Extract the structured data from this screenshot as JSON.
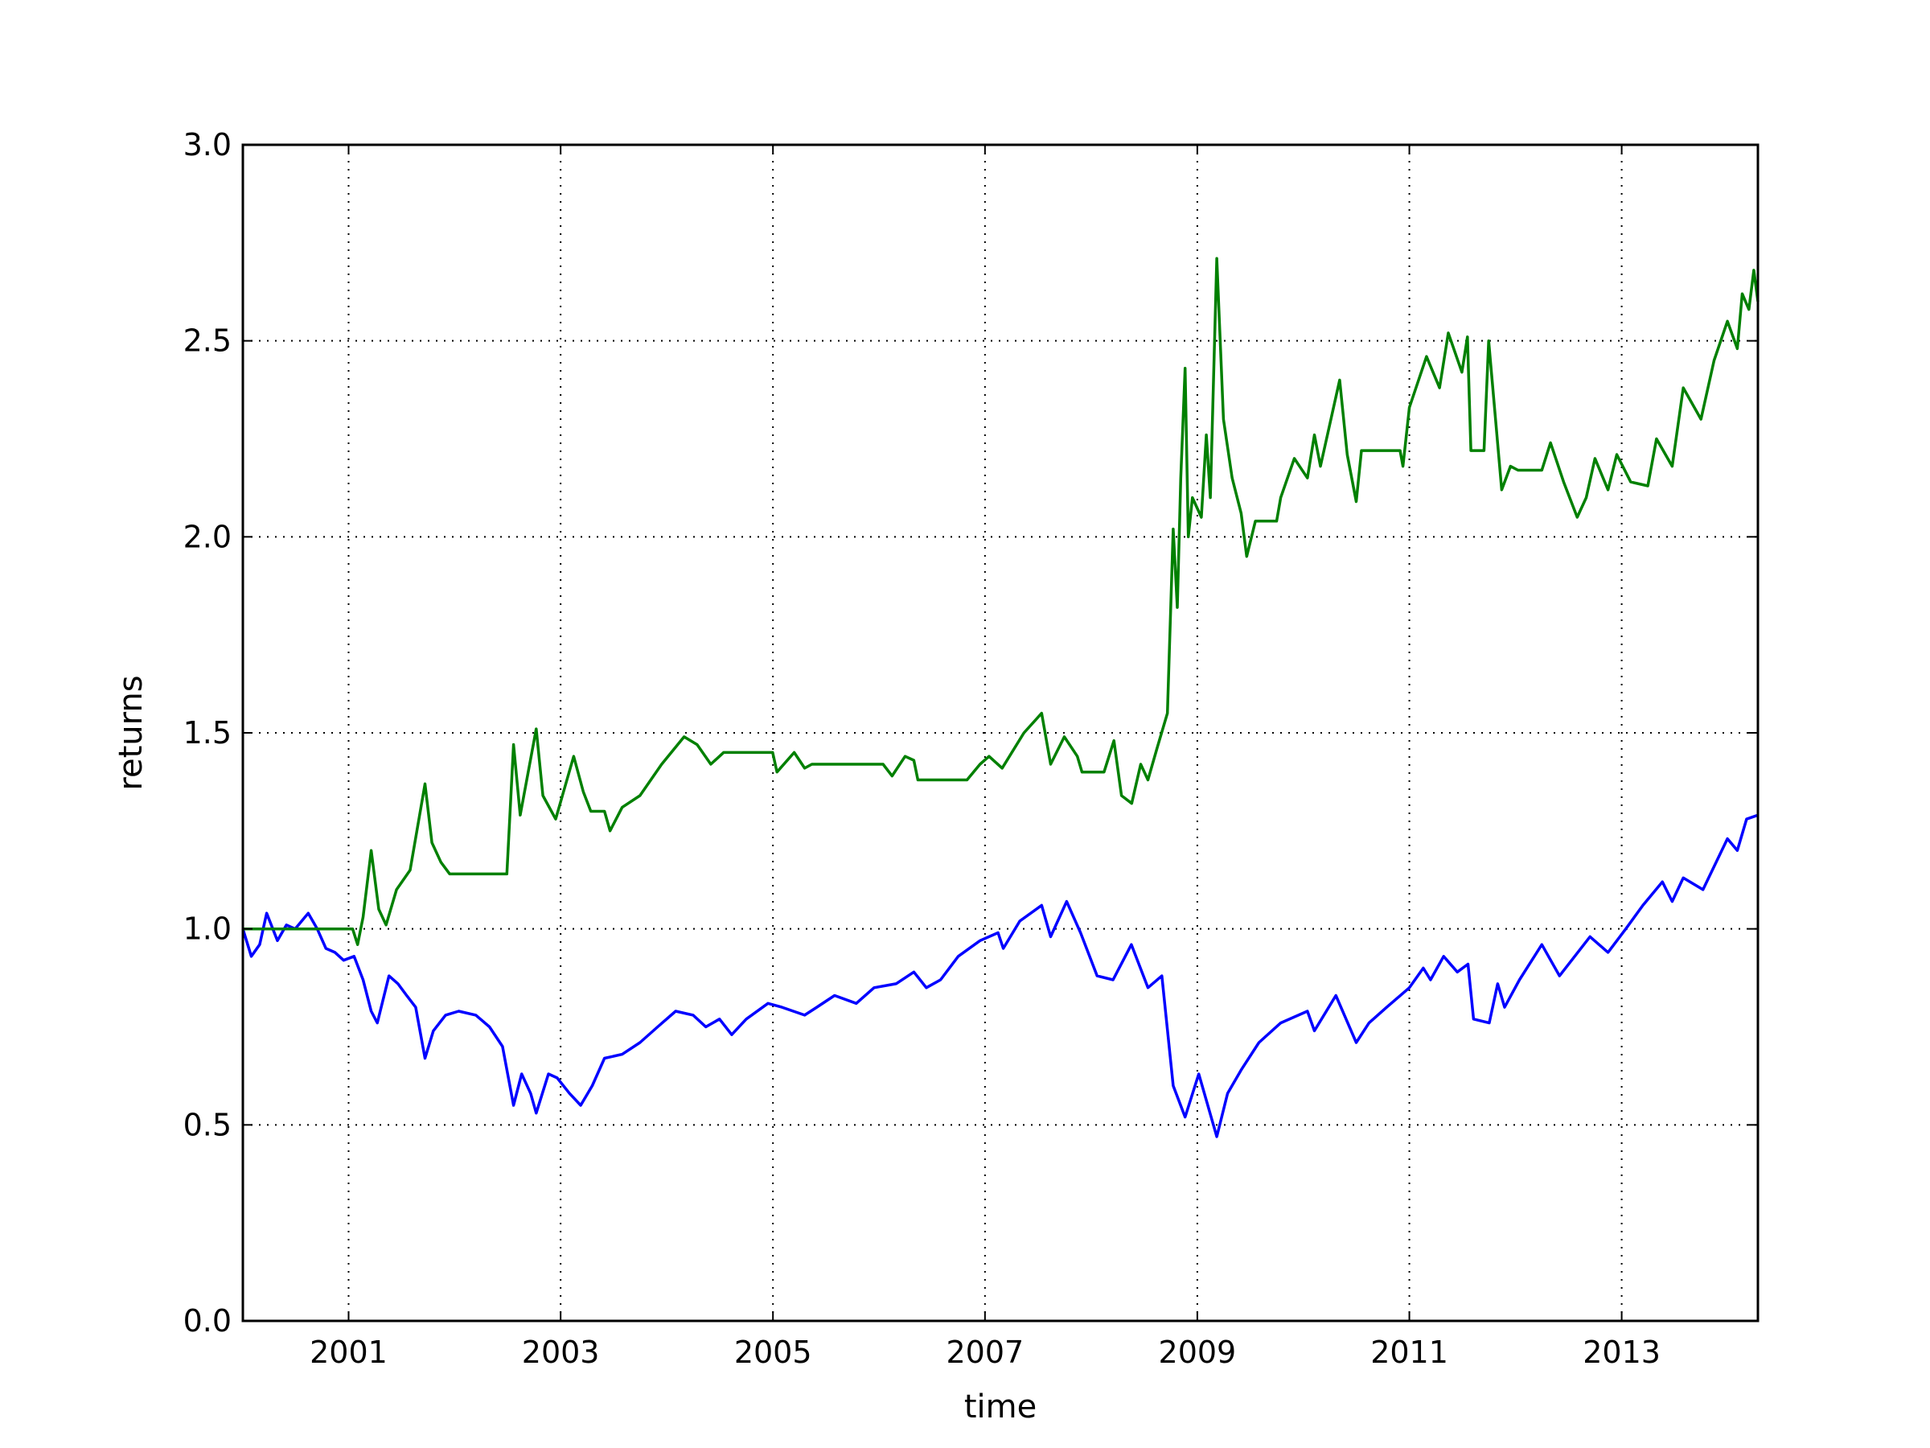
{
  "chart_data": {
    "type": "line",
    "title": "",
    "xlabel": "time",
    "ylabel": "returns",
    "xlim": [
      "2000-01-03",
      "2014-04-15"
    ],
    "ylim": [
      0.0,
      3.0
    ],
    "x_ticks": [
      "2001",
      "2003",
      "2005",
      "2007",
      "2009",
      "2011",
      "2013"
    ],
    "y_ticks": [
      "0.0",
      "0.5",
      "1.0",
      "1.5",
      "2.0",
      "2.5",
      "3.0"
    ],
    "grid": true,
    "legend": null,
    "series": [
      {
        "color": "#0000ff",
        "points": [
          [
            "2000-01-03",
            1.0
          ],
          [
            "2000-02-01",
            0.93
          ],
          [
            "2000-03-01",
            0.96
          ],
          [
            "2000-03-25",
            1.04
          ],
          [
            "2000-05-01",
            0.97
          ],
          [
            "2000-06-01",
            1.01
          ],
          [
            "2000-07-01",
            1.0
          ],
          [
            "2000-08-15",
            1.04
          ],
          [
            "2000-09-15",
            1.0
          ],
          [
            "2000-10-15",
            0.95
          ],
          [
            "2000-11-15",
            0.94
          ],
          [
            "2000-12-15",
            0.92
          ],
          [
            "2001-01-20",
            0.93
          ],
          [
            "2001-02-20",
            0.87
          ],
          [
            "2001-03-20",
            0.79
          ],
          [
            "2001-04-10",
            0.76
          ],
          [
            "2001-05-20",
            0.88
          ],
          [
            "2001-06-20",
            0.86
          ],
          [
            "2001-07-20",
            0.83
          ],
          [
            "2001-08-20",
            0.8
          ],
          [
            "2001-09-21",
            0.67
          ],
          [
            "2001-10-20",
            0.74
          ],
          [
            "2001-12-01",
            0.78
          ],
          [
            "2002-01-15",
            0.79
          ],
          [
            "2002-03-15",
            0.78
          ],
          [
            "2002-05-01",
            0.75
          ],
          [
            "2002-06-15",
            0.7
          ],
          [
            "2002-07-23",
            0.55
          ],
          [
            "2002-08-20",
            0.63
          ],
          [
            "2002-09-20",
            0.58
          ],
          [
            "2002-10-09",
            0.53
          ],
          [
            "2002-11-20",
            0.63
          ],
          [
            "2002-12-20",
            0.62
          ],
          [
            "2003-02-01",
            0.58
          ],
          [
            "2003-03-11",
            0.55
          ],
          [
            "2003-04-20",
            0.6
          ],
          [
            "2003-06-01",
            0.67
          ],
          [
            "2003-08-01",
            0.68
          ],
          [
            "2003-10-01",
            0.71
          ],
          [
            "2003-12-01",
            0.75
          ],
          [
            "2004-02-01",
            0.79
          ],
          [
            "2004-04-01",
            0.78
          ],
          [
            "2004-05-15",
            0.75
          ],
          [
            "2004-07-01",
            0.77
          ],
          [
            "2004-08-12",
            0.73
          ],
          [
            "2004-10-01",
            0.77
          ],
          [
            "2004-12-15",
            0.81
          ],
          [
            "2005-02-01",
            0.8
          ],
          [
            "2005-04-20",
            0.78
          ],
          [
            "2005-06-01",
            0.8
          ],
          [
            "2005-08-01",
            0.83
          ],
          [
            "2005-10-15",
            0.81
          ],
          [
            "2005-12-15",
            0.85
          ],
          [
            "2006-03-01",
            0.86
          ],
          [
            "2006-05-01",
            0.89
          ],
          [
            "2006-06-13",
            0.85
          ],
          [
            "2006-08-01",
            0.87
          ],
          [
            "2006-10-01",
            0.93
          ],
          [
            "2006-12-15",
            0.97
          ],
          [
            "2007-02-15",
            0.99
          ],
          [
            "2007-03-05",
            0.95
          ],
          [
            "2007-05-01",
            1.02
          ],
          [
            "2007-07-15",
            1.06
          ],
          [
            "2007-08-15",
            0.98
          ],
          [
            "2007-10-09",
            1.07
          ],
          [
            "2007-11-26",
            0.99
          ],
          [
            "2008-01-22",
            0.88
          ],
          [
            "2008-03-17",
            0.87
          ],
          [
            "2008-05-19",
            0.96
          ],
          [
            "2008-07-15",
            0.85
          ],
          [
            "2008-09-01",
            0.88
          ],
          [
            "2008-10-10",
            0.6
          ],
          [
            "2008-11-20",
            0.52
          ],
          [
            "2009-01-06",
            0.63
          ],
          [
            "2009-03-09",
            0.47
          ],
          [
            "2009-04-15",
            0.58
          ],
          [
            "2009-06-01",
            0.64
          ],
          [
            "2009-08-01",
            0.71
          ],
          [
            "2009-10-15",
            0.76
          ],
          [
            "2010-01-15",
            0.79
          ],
          [
            "2010-02-08",
            0.74
          ],
          [
            "2010-04-23",
            0.83
          ],
          [
            "2010-07-02",
            0.71
          ],
          [
            "2010-08-15",
            0.76
          ],
          [
            "2010-10-15",
            0.8
          ],
          [
            "2011-01-01",
            0.85
          ],
          [
            "2011-02-18",
            0.9
          ],
          [
            "2011-03-15",
            0.87
          ],
          [
            "2011-04-29",
            0.93
          ],
          [
            "2011-06-15",
            0.89
          ],
          [
            "2011-07-22",
            0.91
          ],
          [
            "2011-08-10",
            0.77
          ],
          [
            "2011-10-03",
            0.76
          ],
          [
            "2011-11-01",
            0.86
          ],
          [
            "2011-11-25",
            0.8
          ],
          [
            "2012-01-15",
            0.87
          ],
          [
            "2012-04-01",
            0.96
          ],
          [
            "2012-06-01",
            0.88
          ],
          [
            "2012-09-14",
            0.98
          ],
          [
            "2012-11-15",
            0.94
          ],
          [
            "2013-01-15",
            1.0
          ],
          [
            "2013-03-15",
            1.06
          ],
          [
            "2013-05-21",
            1.12
          ],
          [
            "2013-06-24",
            1.07
          ],
          [
            "2013-08-01",
            1.13
          ],
          [
            "2013-10-08",
            1.1
          ],
          [
            "2013-12-31",
            1.23
          ],
          [
            "2014-02-03",
            1.2
          ],
          [
            "2014-03-07",
            1.28
          ],
          [
            "2014-04-15",
            1.29
          ]
        ]
      },
      {
        "color": "#008000",
        "points": [
          [
            "2000-01-03",
            1.0
          ],
          [
            "2000-12-31",
            1.0
          ],
          [
            "2001-01-15",
            1.0
          ],
          [
            "2001-02-01",
            0.96
          ],
          [
            "2001-02-20",
            1.03
          ],
          [
            "2001-03-20",
            1.2
          ],
          [
            "2001-04-15",
            1.05
          ],
          [
            "2001-05-10",
            1.01
          ],
          [
            "2001-06-15",
            1.1
          ],
          [
            "2001-08-01",
            1.15
          ],
          [
            "2001-09-21",
            1.37
          ],
          [
            "2001-10-15",
            1.22
          ],
          [
            "2001-11-15",
            1.17
          ],
          [
            "2001-12-15",
            1.14
          ],
          [
            "2002-06-30",
            1.14
          ],
          [
            "2002-07-23",
            1.47
          ],
          [
            "2002-08-15",
            1.29
          ],
          [
            "2002-10-09",
            1.51
          ],
          [
            "2002-11-01",
            1.34
          ],
          [
            "2002-12-15",
            1.28
          ],
          [
            "2003-01-15",
            1.36
          ],
          [
            "2003-02-15",
            1.44
          ],
          [
            "2003-03-20",
            1.35
          ],
          [
            "2003-04-15",
            1.3
          ],
          [
            "2003-06-01",
            1.3
          ],
          [
            "2003-06-20",
            1.25
          ],
          [
            "2003-08-01",
            1.31
          ],
          [
            "2003-10-01",
            1.34
          ],
          [
            "2003-12-15",
            1.42
          ],
          [
            "2004-03-01",
            1.49
          ],
          [
            "2004-04-15",
            1.47
          ],
          [
            "2004-06-01",
            1.42
          ],
          [
            "2004-07-15",
            1.45
          ],
          [
            "2004-12-31",
            1.45
          ],
          [
            "2005-01-15",
            1.4
          ],
          [
            "2005-03-15",
            1.45
          ],
          [
            "2005-04-20",
            1.41
          ],
          [
            "2005-05-15",
            1.42
          ],
          [
            "2006-01-15",
            1.42
          ],
          [
            "2006-02-15",
            1.39
          ],
          [
            "2006-04-01",
            1.44
          ],
          [
            "2006-05-01",
            1.43
          ],
          [
            "2006-05-15",
            1.38
          ],
          [
            "2006-10-31",
            1.38
          ],
          [
            "2006-12-15",
            1.42
          ],
          [
            "2007-01-15",
            1.44
          ],
          [
            "2007-03-01",
            1.41
          ],
          [
            "2007-05-15",
            1.5
          ],
          [
            "2007-07-15",
            1.55
          ],
          [
            "2007-08-15",
            1.42
          ],
          [
            "2007-10-01",
            1.49
          ],
          [
            "2007-11-15",
            1.44
          ],
          [
            "2007-12-01",
            1.4
          ],
          [
            "2008-02-15",
            1.4
          ],
          [
            "2008-03-20",
            1.48
          ],
          [
            "2008-04-15",
            1.34
          ],
          [
            "2008-05-20",
            1.32
          ],
          [
            "2008-06-20",
            1.42
          ],
          [
            "2008-07-15",
            1.38
          ],
          [
            "2008-08-15",
            1.46
          ],
          [
            "2008-09-20",
            1.55
          ],
          [
            "2008-10-10",
            2.02
          ],
          [
            "2008-10-24",
            1.82
          ],
          [
            "2008-11-05",
            2.15
          ],
          [
            "2008-11-20",
            2.43
          ],
          [
            "2008-12-01",
            2.0
          ],
          [
            "2008-12-15",
            2.1
          ],
          [
            "2009-01-15",
            2.05
          ],
          [
            "2009-02-01",
            2.26
          ],
          [
            "2009-02-15",
            2.1
          ],
          [
            "2009-03-09",
            2.71
          ],
          [
            "2009-04-01",
            2.3
          ],
          [
            "2009-05-01",
            2.15
          ],
          [
            "2009-06-01",
            2.06
          ],
          [
            "2009-06-20",
            1.95
          ],
          [
            "2009-07-20",
            2.04
          ],
          [
            "2009-10-01",
            2.04
          ],
          [
            "2009-10-15",
            2.1
          ],
          [
            "2009-12-01",
            2.2
          ],
          [
            "2010-01-15",
            2.15
          ],
          [
            "2010-02-08",
            2.26
          ],
          [
            "2010-03-01",
            2.18
          ],
          [
            "2010-05-06",
            2.4
          ],
          [
            "2010-06-01",
            2.21
          ],
          [
            "2010-07-02",
            2.09
          ],
          [
            "2010-07-20",
            2.22
          ],
          [
            "2010-11-30",
            2.22
          ],
          [
            "2010-12-10",
            2.18
          ],
          [
            "2011-01-01",
            2.33
          ],
          [
            "2011-03-01",
            2.46
          ],
          [
            "2011-04-15",
            2.38
          ],
          [
            "2011-05-15",
            2.52
          ],
          [
            "2011-07-01",
            2.42
          ],
          [
            "2011-07-20",
            2.51
          ],
          [
            "2011-08-01",
            2.22
          ],
          [
            "2011-09-15",
            2.22
          ],
          [
            "2011-10-01",
            2.5
          ],
          [
            "2011-11-15",
            2.12
          ],
          [
            "2011-12-15",
            2.18
          ],
          [
            "2012-01-10",
            2.17
          ],
          [
            "2012-04-01",
            2.17
          ],
          [
            "2012-05-01",
            2.24
          ],
          [
            "2012-06-15",
            2.14
          ],
          [
            "2012-08-01",
            2.05
          ],
          [
            "2012-09-01",
            2.1
          ],
          [
            "2012-10-01",
            2.2
          ],
          [
            "2012-11-15",
            2.12
          ],
          [
            "2012-12-15",
            2.21
          ],
          [
            "2013-02-01",
            2.14
          ],
          [
            "2013-04-01",
            2.13
          ],
          [
            "2013-05-01",
            2.25
          ],
          [
            "2013-06-24",
            2.18
          ],
          [
            "2013-08-01",
            2.38
          ],
          [
            "2013-10-01",
            2.3
          ],
          [
            "2013-11-15",
            2.45
          ],
          [
            "2013-12-31",
            2.55
          ],
          [
            "2014-02-03",
            2.48
          ],
          [
            "2014-02-20",
            2.62
          ],
          [
            "2014-03-15",
            2.58
          ],
          [
            "2014-04-01",
            2.68
          ],
          [
            "2014-04-15",
            2.6
          ]
        ]
      }
    ]
  }
}
